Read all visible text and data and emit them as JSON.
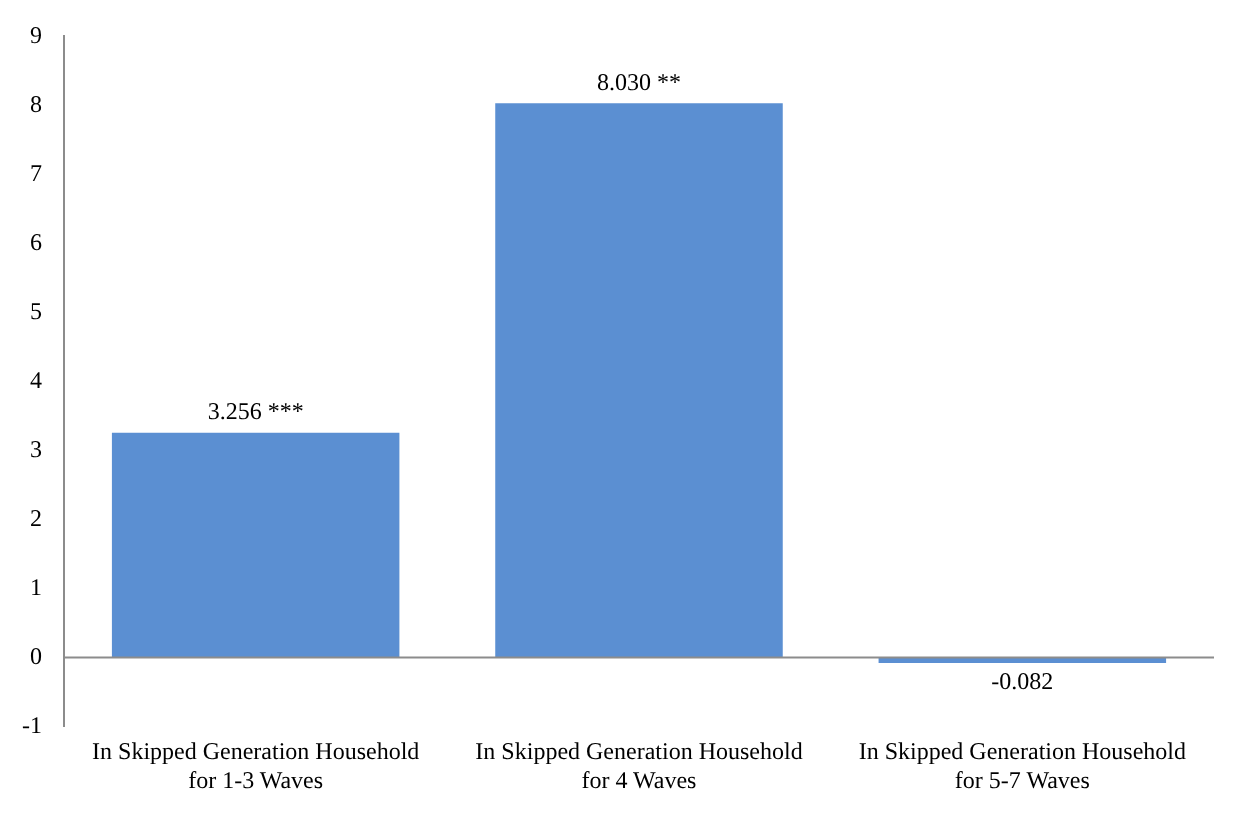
{
  "chart_data": {
    "type": "bar",
    "categories": [
      "In Skipped Generation Household for 1-3 Waves",
      "In Skipped Generation Household for 4 Waves",
      "In Skipped Generation Household for 5-7 Waves"
    ],
    "values": [
      3.256,
      8.03,
      -0.082
    ],
    "value_labels": [
      "3.256 ***",
      "8.030 **",
      "-0.082"
    ],
    "color": "#5b8fd2",
    "ylim": [
      -1,
      9
    ],
    "yticks": [
      -1,
      0,
      1,
      2,
      3,
      4,
      5,
      6,
      7,
      8,
      9
    ],
    "ref_lines": [
      {
        "axis": "y",
        "value": 0,
        "color": "#8c8c8c"
      }
    ],
    "grid": false,
    "legend": false
  }
}
